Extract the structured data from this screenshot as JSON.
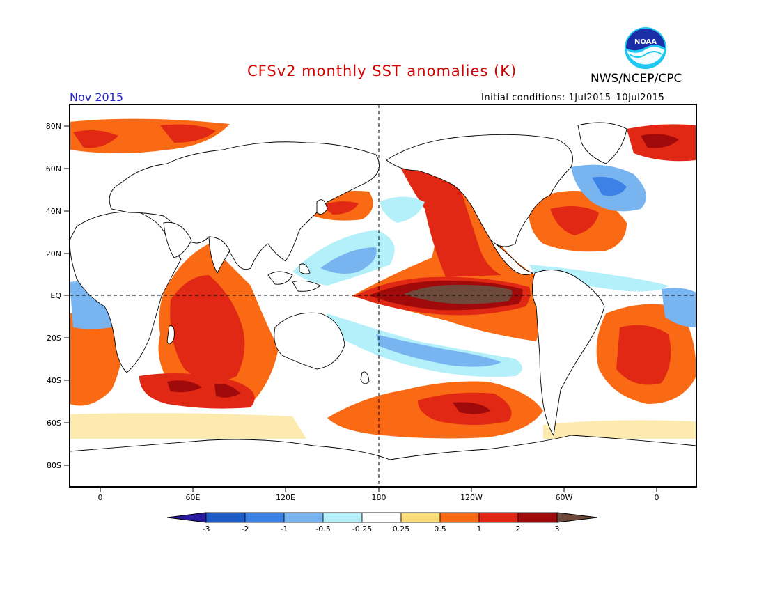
{
  "header": {
    "title": "CFSv2 monthly SST anomalies (K)",
    "agency": "NWS/NCEP/CPC",
    "logo_text": "NOAA",
    "month": "Nov 2015",
    "initial_conditions": "Initial conditions: 1Jul2015–10Jul2015"
  },
  "map": {
    "lat_labels": [
      "80N",
      "60N",
      "40N",
      "20N",
      "EQ",
      "20S",
      "40S",
      "60S",
      "80S"
    ],
    "lon_labels": [
      "0",
      "60E",
      "120E",
      "180",
      "120W",
      "60W",
      "0"
    ]
  },
  "colorbar": {
    "labels": [
      "-3",
      "-2",
      "-1",
      "-0.5",
      "-0.25",
      "0.25",
      "0.5",
      "1",
      "2",
      "3"
    ],
    "colors": [
      "#2a1aa0",
      "#1e5cc8",
      "#3c82e6",
      "#78b4f0",
      "#b4f0fa",
      "#ffffff",
      "#fadc78",
      "#fa6a14",
      "#e02814",
      "#a00a0a",
      "#6e4a3c"
    ]
  }
}
